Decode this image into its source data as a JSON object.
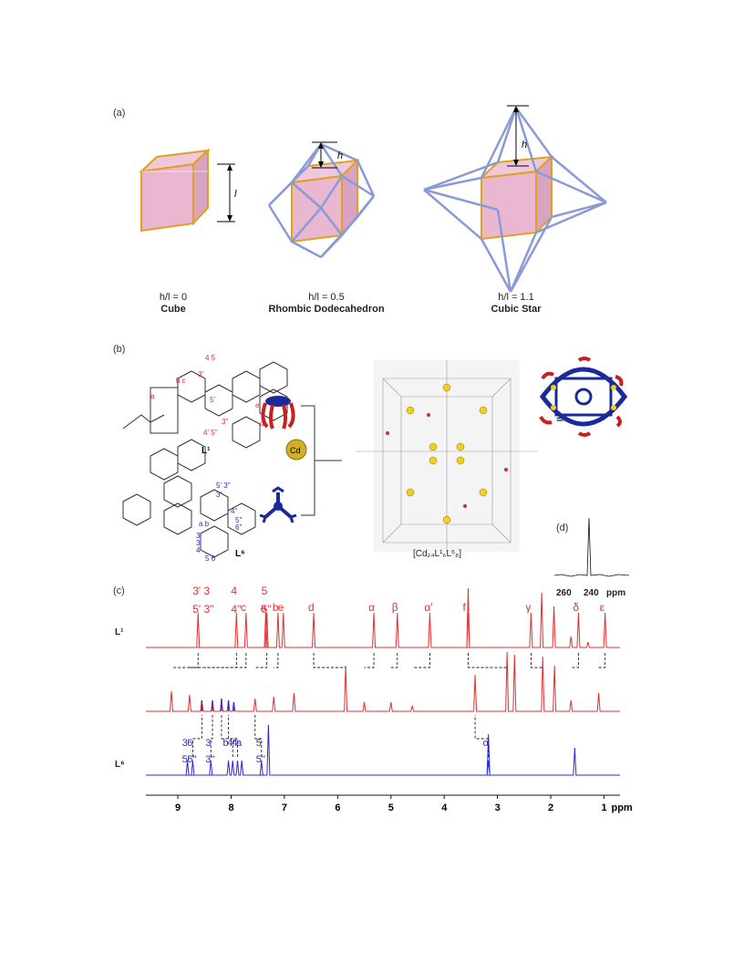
{
  "panel_a": {
    "label": "(a)",
    "dim_l": "l",
    "dim_h": "h",
    "shapes": [
      {
        "ratio": "h/l = 0",
        "name": "Cube"
      },
      {
        "ratio": "h/l = 0.5",
        "name": "Rhombic Dodecahedron"
      },
      {
        "ratio": "h/l = 1.1",
        "name": "Cubic Star"
      }
    ]
  },
  "panel_b": {
    "label": "(b)",
    "ligand1": "L¹",
    "ligand6": "L⁶",
    "metal": "Cd",
    "complex": "[Cd₂₄L¹₆L⁶₈]",
    "equiv": "≡",
    "l1_labels": [
      "4",
      "5",
      "3'",
      "b",
      "c",
      "a",
      "5'",
      "e",
      "d",
      "4'",
      "5''",
      "3''",
      "f",
      "α",
      "β",
      "γ",
      "δ",
      "ε"
    ],
    "l6_labels": [
      "3''",
      "5'",
      "6''",
      "4''",
      "5''",
      "a",
      "b",
      "3",
      "3'",
      "4",
      "5",
      "6",
      "α"
    ]
  },
  "panel_c": {
    "label": "(c)",
    "trace_L1": "L¹",
    "trace_L6": "L⁶",
    "l1_peak_labels": [
      {
        "t": "3' 3",
        "ppm": 8.62
      },
      {
        "t": "5' 3''",
        "ppm": 8.62
      },
      {
        "t": "4",
        "ppm": 7.9
      },
      {
        "t": "4''",
        "ppm": 7.9
      },
      {
        "t": "c",
        "ppm": 7.72
      },
      {
        "t": "5",
        "ppm": 7.33
      },
      {
        "t": "5''",
        "ppm": 7.33
      },
      {
        "t": "a",
        "ppm": 7.35
      },
      {
        "t": "b",
        "ppm": 7.12
      },
      {
        "t": "e",
        "ppm": 7.02
      },
      {
        "t": "d",
        "ppm": 6.45
      },
      {
        "t": "α",
        "ppm": 5.32
      },
      {
        "t": "β",
        "ppm": 4.88
      },
      {
        "t": "α'",
        "ppm": 4.27
      },
      {
        "t": "f",
        "ppm": 3.55
      },
      {
        "t": "γ",
        "ppm": 2.37
      },
      {
        "t": "δ",
        "ppm": 1.48
      },
      {
        "t": "ε",
        "ppm": 0.98
      }
    ],
    "l6_peak_labels": [
      {
        "t": "6",
        "ppm": 8.72
      },
      {
        "t": "3'",
        "ppm": 8.82
      },
      {
        "t": "6''",
        "ppm": 8.72
      },
      {
        "t": "5'",
        "ppm": 8.82
      },
      {
        "t": "3",
        "ppm": 8.38
      },
      {
        "t": "3''",
        "ppm": 8.38
      },
      {
        "t": "4",
        "ppm": 7.88
      },
      {
        "t": "4''",
        "ppm": 7.97
      },
      {
        "t": "a",
        "ppm": 7.8
      },
      {
        "t": "b",
        "ppm": 8.05
      },
      {
        "t": "5",
        "ppm": 7.43
      },
      {
        "t": "5''",
        "ppm": 7.43
      },
      {
        "t": "α",
        "ppm": 3.17
      }
    ],
    "axis_ticks": [
      "9",
      "8",
      "7",
      "6",
      "5",
      "4",
      "3",
      "2",
      "1"
    ],
    "axis_unit": "ppm"
  },
  "panel_d": {
    "label": "(d)",
    "ticks": [
      "260",
      "240"
    ],
    "unit": "ppm"
  },
  "colors": {
    "red": "#e03030",
    "blue": "#2a2ad0",
    "pink": "#e8b4cf",
    "gold": "#e0a020",
    "frame": "#8a9ad8"
  }
}
